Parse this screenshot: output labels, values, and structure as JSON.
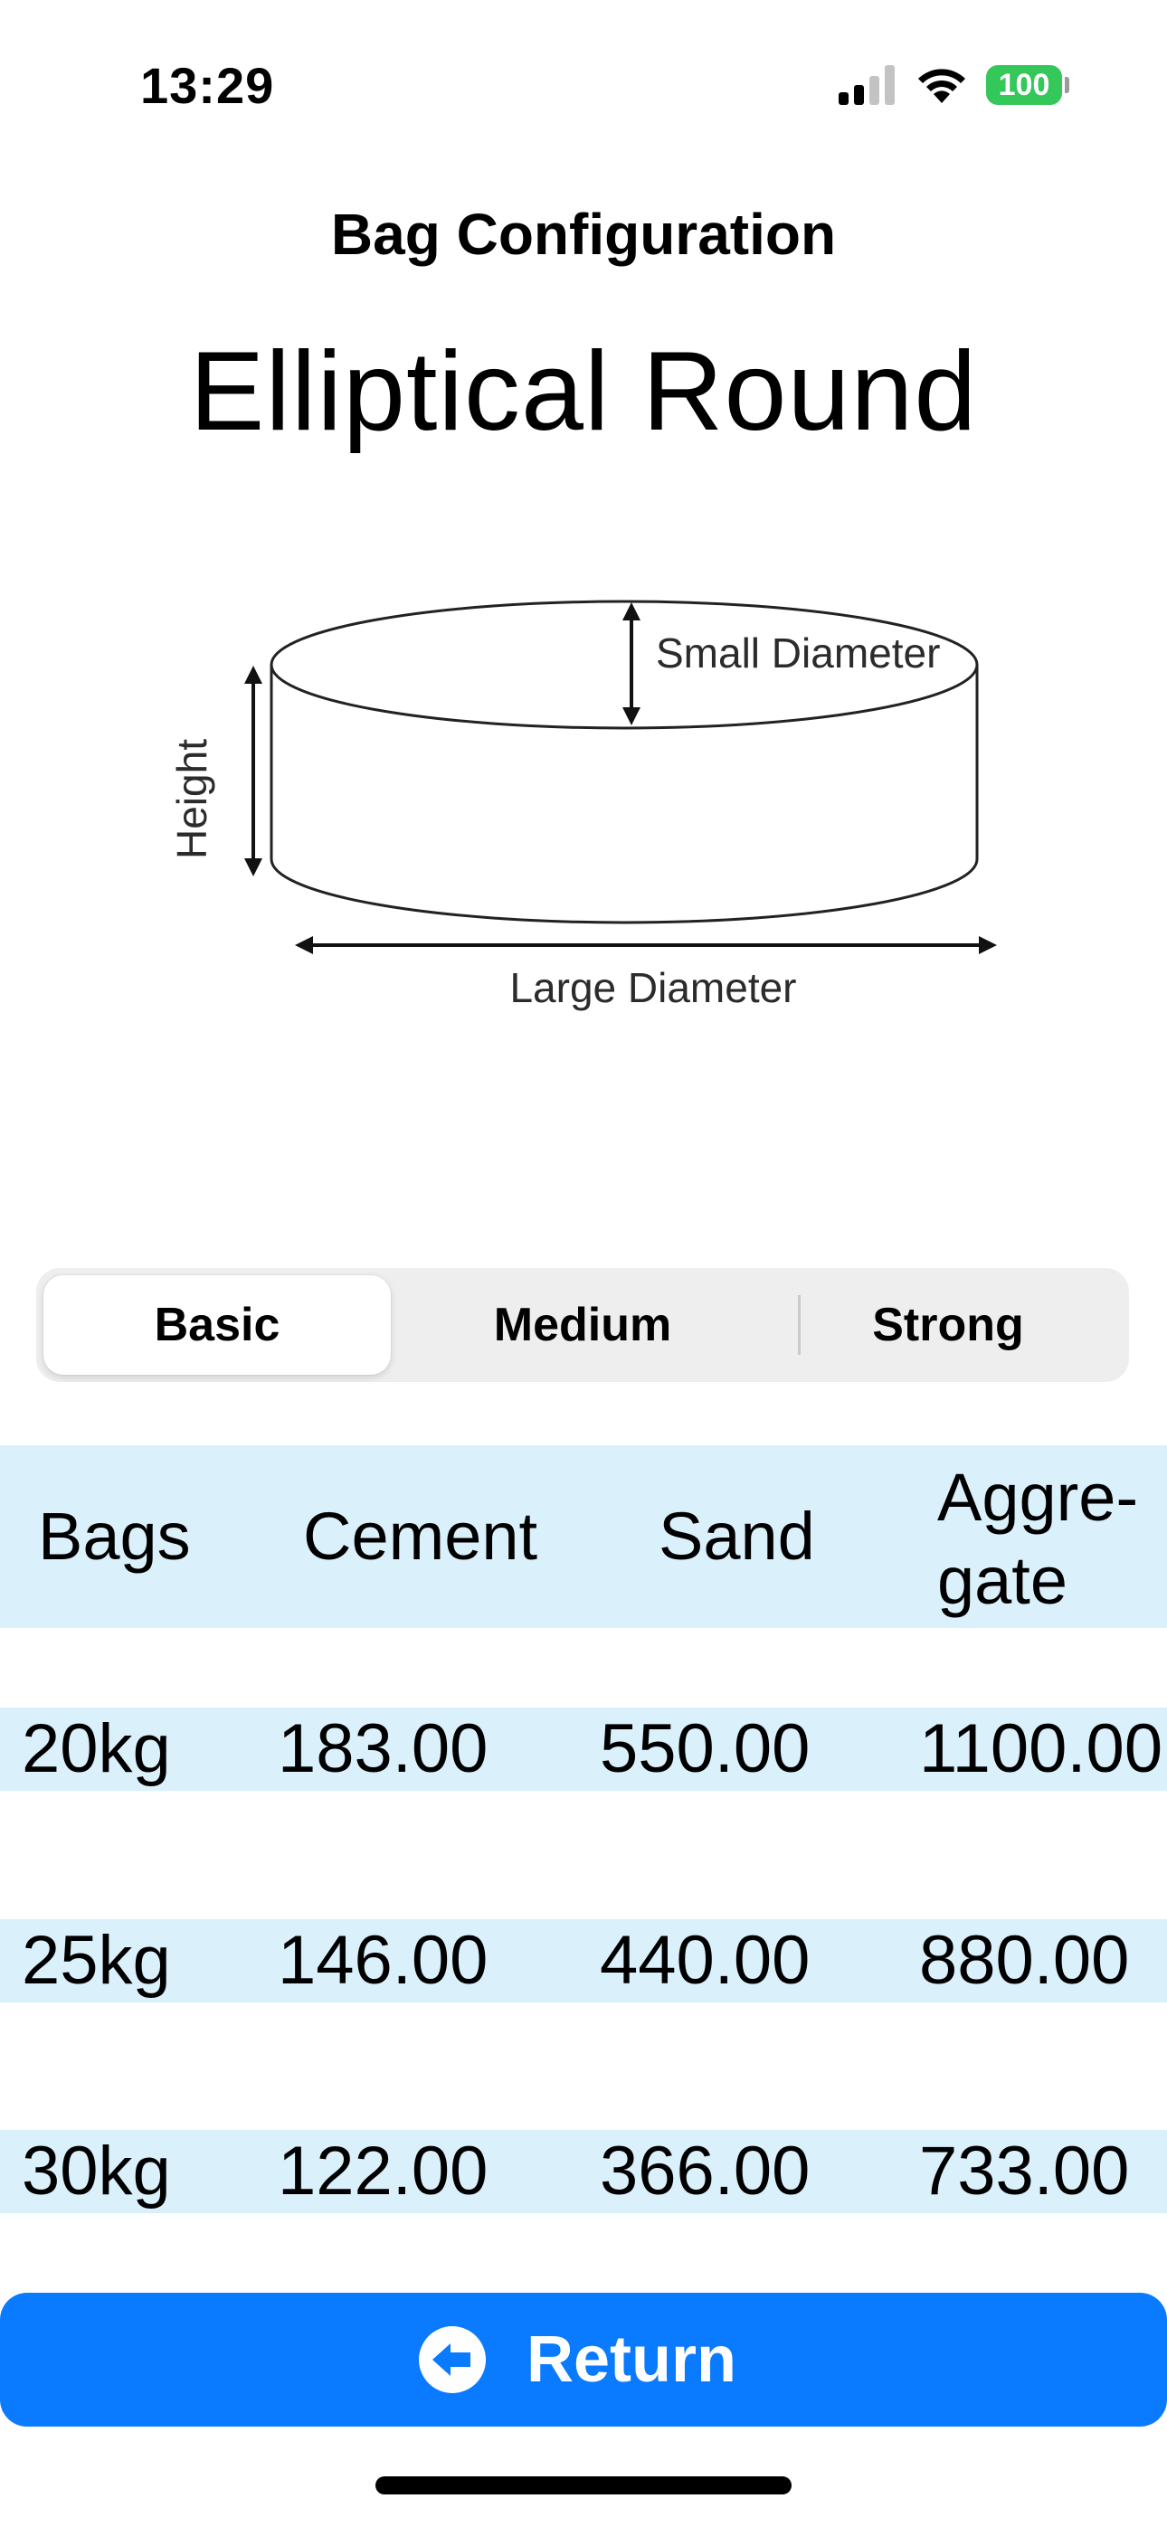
{
  "status_bar": {
    "time": "13:29",
    "battery_level": "100",
    "battery_color": "#34c759",
    "signal_icon": "cellular-signal-icon",
    "wifi_icon": "wifi-icon"
  },
  "header": {
    "title": "Bag Configuration",
    "configuration_name": "Elliptical Round"
  },
  "diagram": {
    "height_label": "Height",
    "small_diameter_label": "Small Diameter",
    "large_diameter_label": "Large Diameter"
  },
  "segments": {
    "items": [
      {
        "label": "Basic",
        "selected": true
      },
      {
        "label": "Medium",
        "selected": false
      },
      {
        "label": "Strong",
        "selected": false
      }
    ]
  },
  "table": {
    "header_color": "#daf0fb",
    "columns": [
      "Bags",
      "Cement",
      "Sand",
      "Aggre-",
      "gate"
    ],
    "rows": [
      {
        "bag": "20kg",
        "cement": "183.00",
        "sand": "550.00",
        "aggregate": "1100.00"
      },
      {
        "bag": "25kg",
        "cement": "146.00",
        "sand": "440.00",
        "aggregate": "880.00"
      },
      {
        "bag": "30kg",
        "cement": "122.00",
        "sand": "366.00",
        "aggregate": "733.00"
      }
    ]
  },
  "footer": {
    "return_label": "Return",
    "return_icon": "arrow-left-circle-icon",
    "accent_color": "#0a7aff"
  }
}
